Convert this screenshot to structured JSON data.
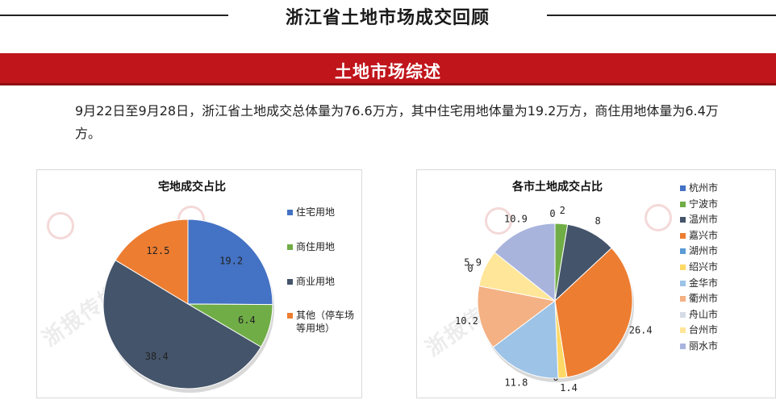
{
  "header": {
    "title": "浙江省土地市场成交回顾"
  },
  "section": {
    "title": "土地市场综述"
  },
  "summary": {
    "text": "9月22日至9月28日，浙江省土地成交总体量为76.6万方，其中住宅用地体量为19.2万方，商住用地体量为6.4万方。"
  },
  "watermark": {
    "text": "浙报传媒地产研究院"
  },
  "chart_data": [
    {
      "type": "pie",
      "title": "宅地成交占比",
      "labels": [
        "住宅用地",
        "商住用地",
        "商业用地",
        "其他（停车场等用地）"
      ],
      "legend": [
        "住宅用地",
        "商住用地",
        "商业用地",
        "其他（停车场\n等用地）"
      ],
      "values": [
        19.2,
        6.4,
        38.4,
        12.5
      ],
      "value_labels": [
        "19.2",
        "6.4",
        "38.4",
        "12.5"
      ],
      "colors": [
        "#4472c4",
        "#70ad47",
        "#44546a",
        "#ed7d31"
      ],
      "legend_position": "right"
    },
    {
      "type": "pie",
      "title": "各市土地成交占比",
      "labels": [
        "杭州市",
        "宁波市",
        "温州市",
        "嘉兴市",
        "湖州市",
        "绍兴市",
        "金华市",
        "衢州市",
        "舟山市",
        "台州市",
        "丽水市"
      ],
      "values": [
        0,
        2,
        8,
        26.4,
        0,
        1.4,
        11.8,
        10.2,
        0,
        5.9,
        10.9
      ],
      "value_labels": [
        "0",
        "2",
        "8",
        "26.4",
        "0",
        "1.4",
        "11.8",
        "10.2",
        "0",
        "5.9",
        "10.9"
      ],
      "colors": [
        "#4472c4",
        "#70ad47",
        "#44546a",
        "#ed7d31",
        "#5b9bd5",
        "#ffd966",
        "#9dc3e6",
        "#f4b183",
        "#d6dce5",
        "#ffe699",
        "#a9b4dd"
      ],
      "legend_position": "right"
    }
  ]
}
